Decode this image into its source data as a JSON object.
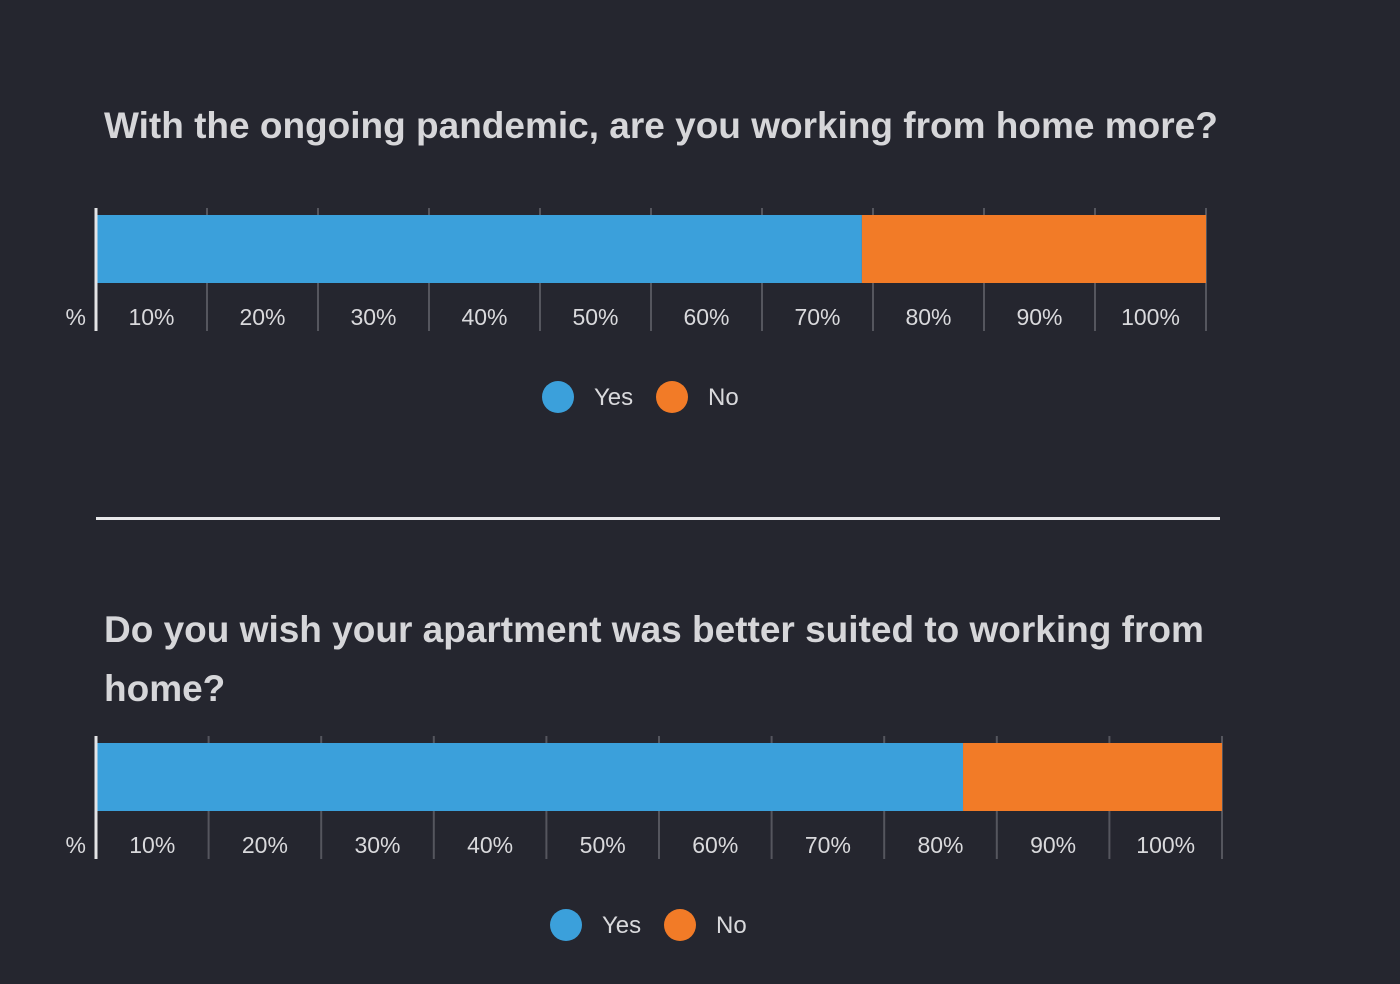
{
  "colors": {
    "background": "#25262f",
    "yes": "#3ba0db",
    "no": "#f27b27",
    "grid": "#55565e",
    "text": "#d9d9dc"
  },
  "chart_data": [
    {
      "type": "bar",
      "orientation": "horizontal",
      "stacked": true,
      "title": "With the ongoing pandemic, are you working from home more?",
      "series": [
        {
          "name": "Yes",
          "values": [
            69
          ]
        },
        {
          "name": "No",
          "values": [
            31
          ]
        }
      ],
      "xlim": [
        0,
        100
      ],
      "x_ticks": [
        "%",
        "10%",
        "20%",
        "30%",
        "40%",
        "50%",
        "60%",
        "70%",
        "80%",
        "90%",
        "100%"
      ],
      "grid": true,
      "legend": "bottom-center"
    },
    {
      "type": "bar",
      "orientation": "horizontal",
      "stacked": true,
      "title": "Do you wish your apartment was better suited to working from home?",
      "series": [
        {
          "name": "Yes",
          "values": [
            77
          ]
        },
        {
          "name": "No",
          "values": [
            23
          ]
        }
      ],
      "xlim": [
        0,
        100
      ],
      "x_ticks": [
        "%",
        "10%",
        "20%",
        "30%",
        "40%",
        "50%",
        "60%",
        "70%",
        "80%",
        "90%",
        "100%"
      ],
      "grid": true,
      "legend": "bottom-center"
    }
  ]
}
